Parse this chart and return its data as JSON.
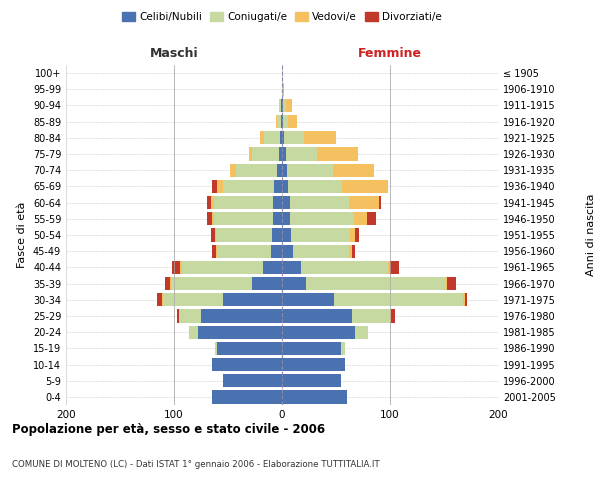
{
  "age_groups": [
    "0-4",
    "5-9",
    "10-14",
    "15-19",
    "20-24",
    "25-29",
    "30-34",
    "35-39",
    "40-44",
    "45-49",
    "50-54",
    "55-59",
    "60-64",
    "65-69",
    "70-74",
    "75-79",
    "80-84",
    "85-89",
    "90-94",
    "95-99",
    "100+"
  ],
  "birth_years": [
    "2001-2005",
    "1996-2000",
    "1991-1995",
    "1986-1990",
    "1981-1985",
    "1976-1980",
    "1971-1975",
    "1966-1970",
    "1961-1965",
    "1956-1960",
    "1951-1955",
    "1946-1950",
    "1941-1945",
    "1936-1940",
    "1931-1935",
    "1926-1930",
    "1921-1925",
    "1916-1920",
    "1911-1915",
    "1906-1910",
    "≤ 1905"
  ],
  "maschi": {
    "celibe": [
      65,
      55,
      65,
      60,
      78,
      75,
      55,
      28,
      18,
      10,
      9,
      8,
      8,
      7,
      5,
      3,
      2,
      1,
      1,
      0,
      0
    ],
    "coniugato": [
      0,
      0,
      0,
      2,
      8,
      20,
      55,
      75,
      75,
      50,
      52,
      55,
      55,
      48,
      38,
      25,
      15,
      4,
      2,
      0,
      0
    ],
    "vedovo": [
      0,
      0,
      0,
      0,
      0,
      0,
      1,
      1,
      1,
      1,
      1,
      2,
      3,
      5,
      5,
      3,
      3,
      1,
      0,
      0,
      0
    ],
    "divorziato": [
      0,
      0,
      0,
      0,
      0,
      2,
      5,
      4,
      8,
      4,
      4,
      4,
      3,
      5,
      0,
      0,
      0,
      0,
      0,
      0,
      0
    ]
  },
  "femmine": {
    "nubile": [
      60,
      55,
      58,
      55,
      68,
      65,
      48,
      22,
      18,
      10,
      8,
      7,
      7,
      6,
      5,
      4,
      2,
      1,
      1,
      0,
      0
    ],
    "coniugata": [
      0,
      0,
      0,
      3,
      12,
      35,
      120,
      130,
      80,
      52,
      55,
      60,
      55,
      50,
      42,
      28,
      18,
      5,
      3,
      1,
      0
    ],
    "vedova": [
      0,
      0,
      0,
      0,
      0,
      1,
      1,
      1,
      2,
      3,
      5,
      12,
      28,
      42,
      38,
      38,
      30,
      8,
      5,
      1,
      0
    ],
    "divorziata": [
      0,
      0,
      0,
      0,
      0,
      4,
      2,
      8,
      8,
      3,
      3,
      8,
      2,
      0,
      0,
      0,
      0,
      0,
      0,
      0,
      0
    ]
  },
  "colors": {
    "celibe_nubile": "#4a72b0",
    "coniugato_a": "#c5d9a0",
    "vedovo_a": "#f5c060",
    "divorziato_a": "#c0392b"
  },
  "xlim": [
    -200,
    200
  ],
  "xticks": [
    -200,
    -100,
    0,
    100,
    200
  ],
  "xticklabels": [
    "200",
    "100",
    "0",
    "100",
    "200"
  ],
  "title": "Popolazione per età, sesso e stato civile - 2006",
  "subtitle": "COMUNE DI MOLTENO (LC) - Dati ISTAT 1° gennaio 2006 - Elaborazione TUTTITALIA.IT",
  "ylabel_left": "Fasce di età",
  "ylabel_right": "Anni di nascita",
  "label_maschi": "Maschi",
  "label_femmine": "Femmine",
  "legend_labels": [
    "Celibi/Nubili",
    "Coniugati/e",
    "Vedovi/e",
    "Divorziati/e"
  ]
}
